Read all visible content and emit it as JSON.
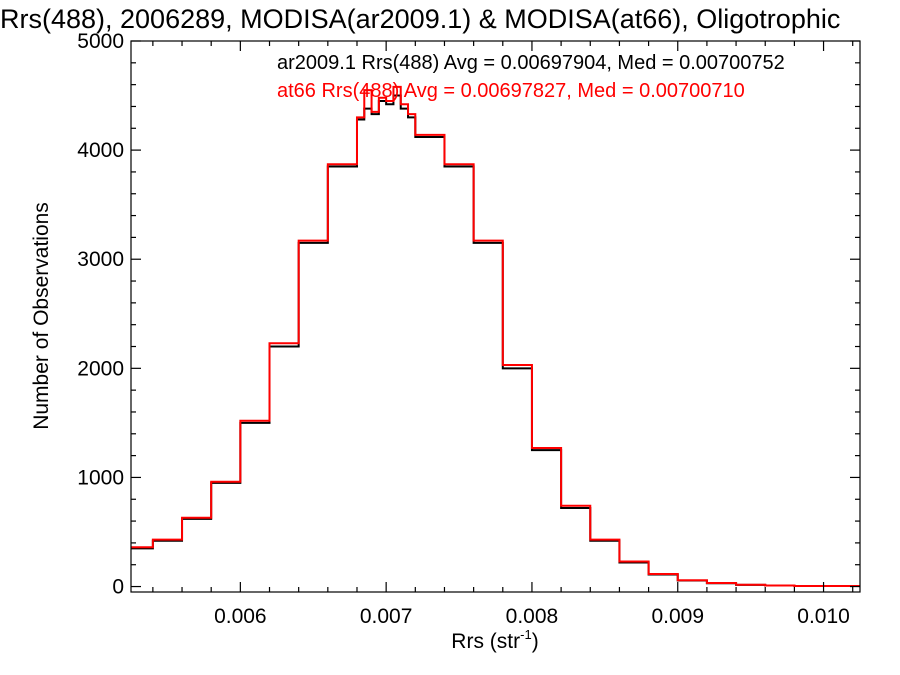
{
  "chart_data": {
    "type": "line",
    "title": "Rrs(488), 2006289, MODISA(ar2009.1) & MODISA(at66), Oligotrophic",
    "xlabel_base": "Rrs (str",
    "xlabel_sup": "-1",
    "xlabel_close": ")",
    "ylabel": "Number of Observations",
    "xlim": [
      0.00525,
      0.01025
    ],
    "ylim": [
      -50,
      5000
    ],
    "xticks": [
      0.006,
      0.007,
      0.008,
      0.009,
      0.01
    ],
    "xtick_labels": [
      "0.006",
      "0.007",
      "0.008",
      "0.009",
      "0.010"
    ],
    "yticks": [
      0,
      1000,
      2000,
      3000,
      4000,
      5000
    ],
    "ytick_labels": [
      "0",
      "1000",
      "2000",
      "3000",
      "4000",
      "5000"
    ],
    "colors": {
      "axes": "#000000",
      "series1": "#000000",
      "series2": "#ff0000"
    },
    "series": [
      {
        "name": "ar2009.1",
        "legend": "ar2009.1 Rrs(488) Avg = 0.00697904, Med = 0.00700752",
        "color": "#000000",
        "x": [
          0.00525,
          0.0054,
          0.0056,
          0.0058,
          0.006,
          0.0062,
          0.0064,
          0.0066,
          0.0068,
          0.00685,
          0.0069,
          0.00695,
          0.007,
          0.00705,
          0.0071,
          0.00715,
          0.0072,
          0.0074,
          0.0076,
          0.0078,
          0.008,
          0.0082,
          0.0084,
          0.0086,
          0.0088,
          0.009,
          0.0092,
          0.0094,
          0.0096,
          0.0098,
          0.01,
          0.01025
        ],
        "y": [
          350,
          420,
          620,
          950,
          1500,
          2200,
          3150,
          3850,
          4280,
          4380,
          4330,
          4450,
          4420,
          4500,
          4380,
          4300,
          4120,
          3850,
          3150,
          2000,
          1250,
          720,
          420,
          220,
          110,
          55,
          30,
          15,
          10,
          5,
          5,
          3
        ]
      },
      {
        "name": "at66",
        "legend": "at66 Rrs(488) Avg = 0.00697827, Med = 0.00700710",
        "color": "#ff0000",
        "x": [
          0.00525,
          0.0054,
          0.0056,
          0.0058,
          0.006,
          0.0062,
          0.0064,
          0.0066,
          0.0068,
          0.00685,
          0.0069,
          0.00695,
          0.007,
          0.00705,
          0.0071,
          0.00715,
          0.0072,
          0.0074,
          0.0076,
          0.0078,
          0.008,
          0.0082,
          0.0084,
          0.0086,
          0.0088,
          0.009,
          0.0092,
          0.0094,
          0.0096,
          0.0098,
          0.01,
          0.01025
        ],
        "y": [
          360,
          430,
          630,
          960,
          1520,
          2230,
          3170,
          3870,
          4300,
          4550,
          4350,
          4480,
          4450,
          4580,
          4420,
          4330,
          4140,
          3870,
          3170,
          2030,
          1270,
          740,
          430,
          230,
          115,
          58,
          32,
          16,
          10,
          5,
          5,
          3
        ]
      }
    ]
  }
}
